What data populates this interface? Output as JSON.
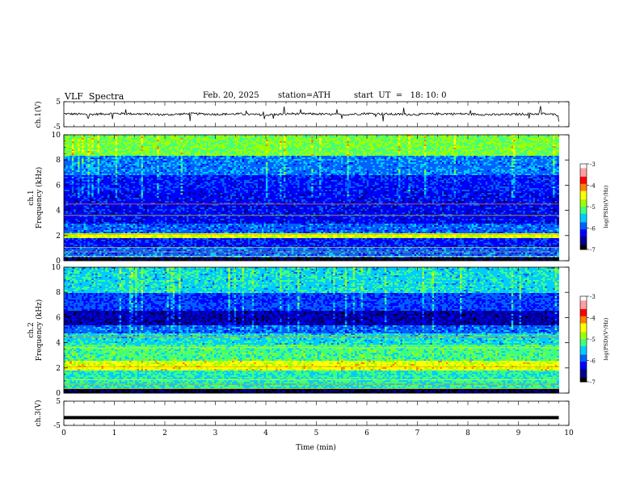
{
  "header": {
    "title": "VLF  Spectra",
    "date": "Feb. 20, 2025",
    "station": "station=ATH",
    "start_ut": "start  UT  =   18: 10: 0"
  },
  "colors": {
    "colormap": [
      "#000000",
      "#00008f",
      "#0000ff",
      "#0060ff",
      "#00ccff",
      "#40ff80",
      "#a0ff00",
      "#ffff00",
      "#ff8000",
      "#ff0000",
      "#ffa0a0",
      "#ffffff"
    ],
    "trace": "#000000"
  },
  "chart_data": [
    {
      "type": "line",
      "ylabel": "ch.1(V)",
      "ylim": [
        -5,
        5
      ],
      "yticks": [
        "5",
        "-5"
      ],
      "x": [
        0,
        0.5,
        1.0,
        1.5,
        2.0,
        2.5,
        3.0,
        3.5,
        4.0,
        4.5,
        5.0,
        5.5,
        6.0,
        6.5,
        7.0,
        7.5,
        8.0,
        8.5,
        9.0,
        9.5,
        9.8
      ],
      "y": [
        0.2,
        -0.1,
        0.3,
        0.1,
        -0.2,
        0.2,
        0.0,
        0.1,
        -0.3,
        0.2,
        0.1,
        -0.2,
        0.3,
        0.0,
        -0.1,
        0.2,
        0.1,
        -0.2,
        0.0,
        0.2,
        -0.3
      ],
      "xlim": [
        0,
        10
      ]
    },
    {
      "type": "heatmap",
      "ylabel": "ch.1\nFrequency  (kHz)",
      "ylim": [
        0,
        10
      ],
      "yticks": [
        "0",
        "2",
        "4",
        "6",
        "8",
        "10"
      ],
      "xlim": [
        0,
        10
      ],
      "x_data_end": 9.8,
      "colorbar": {
        "label": "log(PSD)(V²/Hz)",
        "range": [
          -7,
          -3
        ],
        "ticks": [
          "-3",
          "-4",
          "-5",
          "-6",
          "-7"
        ]
      }
    },
    {
      "type": "heatmap",
      "ylabel": "ch.2\nFrequency  (kHz)",
      "ylim": [
        0,
        10
      ],
      "yticks": [
        "0",
        "2",
        "4",
        "6",
        "8",
        "10"
      ],
      "xlim": [
        0,
        10
      ],
      "x_data_end": 9.8,
      "colorbar": {
        "label": "log(PSD)(V²/Hz)",
        "range": [
          -7,
          -3
        ],
        "ticks": [
          "-3",
          "-4",
          "-5",
          "-6",
          "-7"
        ]
      }
    },
    {
      "type": "line",
      "ylabel": "ch.3(V)",
      "ylim": [
        -5,
        5
      ],
      "yticks": [
        "5",
        "-5"
      ],
      "x": [
        0,
        9.8
      ],
      "y": [
        -1.8,
        -1.8
      ],
      "xlim": [
        0,
        10
      ],
      "xlabel": "Time  (min)",
      "xticks": [
        "0",
        "1",
        "2",
        "3",
        "4",
        "5",
        "6",
        "7",
        "8",
        "9",
        "10"
      ]
    }
  ]
}
